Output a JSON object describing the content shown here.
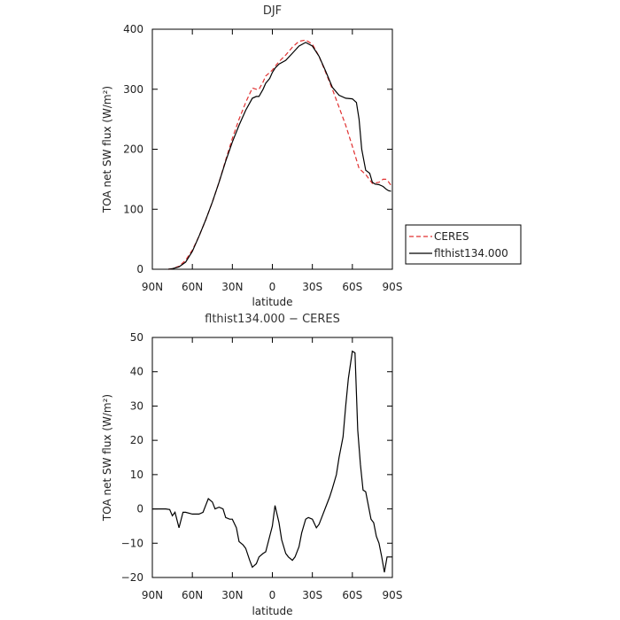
{
  "chart_data": [
    {
      "type": "line",
      "title": "DJF",
      "xlabel": "latitude",
      "ylabel": "TOA net SW flux (W/m²)",
      "xlim": [
        90,
        -90
      ],
      "ylim": [
        0,
        400
      ],
      "x_ticks": [
        90,
        60,
        30,
        0,
        -30,
        -60,
        -90
      ],
      "x_tick_labels": [
        "90N",
        "60N",
        "30N",
        "0",
        "30S",
        "60S",
        "90S"
      ],
      "y_ticks": [
        0,
        100,
        200,
        300,
        400
      ],
      "y_tick_labels": [
        "0",
        "100",
        "200",
        "300",
        "400"
      ],
      "legend": "right",
      "series": [
        {
          "name": "CERES",
          "color": "#e03030",
          "dash": "dashed",
          "x": [
            78,
            75,
            70,
            65,
            60,
            55,
            50,
            45,
            40,
            35,
            30,
            25,
            20,
            15,
            12,
            10,
            7,
            5,
            2,
            0,
            -2,
            -5,
            -10,
            -15,
            -20,
            -25,
            -30,
            -35,
            -40,
            -45,
            -50,
            -55,
            -60,
            -65,
            -70,
            -75,
            -80,
            -83,
            -85,
            -87,
            -89
          ],
          "y": [
            0,
            1,
            5,
            15,
            32,
            55,
            82,
            112,
            145,
            182,
            218,
            250,
            278,
            302,
            300,
            300,
            312,
            322,
            328,
            332,
            338,
            346,
            357,
            370,
            380,
            382,
            375,
            355,
            328,
            300,
            270,
            240,
            205,
            168,
            158,
            143,
            145,
            150,
            150,
            146,
            140
          ]
        },
        {
          "name": "flthist134.000",
          "color": "#000000",
          "dash": "solid",
          "x": [
            78,
            75,
            70,
            65,
            60,
            55,
            50,
            45,
            40,
            35,
            30,
            25,
            20,
            15,
            12,
            10,
            7,
            5,
            2,
            0,
            -2,
            -5,
            -10,
            -15,
            -20,
            -25,
            -30,
            -35,
            -40,
            -45,
            -50,
            -55,
            -60,
            -63,
            -65,
            -67,
            -70,
            -73,
            -75,
            -77,
            -80,
            -83,
            -85,
            -87,
            -89
          ],
          "y": [
            0,
            1,
            4,
            12,
            30,
            55,
            82,
            112,
            145,
            180,
            212,
            240,
            265,
            285,
            288,
            288,
            300,
            310,
            318,
            328,
            335,
            342,
            348,
            360,
            372,
            378,
            372,
            355,
            330,
            303,
            290,
            285,
            284,
            278,
            250,
            200,
            165,
            160,
            145,
            142,
            141,
            138,
            134,
            131,
            130
          ]
        }
      ]
    },
    {
      "type": "line",
      "title": "flthist134.000 − CERES",
      "xlabel": "latitude",
      "ylabel": "TOA net SW flux (W/m²)",
      "xlim": [
        90,
        -90
      ],
      "ylim": [
        -20,
        50
      ],
      "x_ticks": [
        90,
        60,
        30,
        0,
        -30,
        -60,
        -90
      ],
      "x_tick_labels": [
        "90N",
        "60N",
        "30N",
        "0",
        "30S",
        "60S",
        "90S"
      ],
      "y_ticks": [
        -20,
        -10,
        0,
        10,
        20,
        30,
        40,
        50
      ],
      "y_tick_labels": [
        "−20",
        "−10",
        "0",
        "10",
        "20",
        "30",
        "40",
        "50"
      ],
      "series": [
        {
          "color": "#000000",
          "dash": "solid",
          "x": [
            90,
            85,
            80,
            77,
            75,
            73,
            70,
            67,
            65,
            60,
            55,
            52,
            50,
            48,
            45,
            43,
            40,
            37,
            35,
            32,
            30,
            27,
            25,
            22,
            20,
            17,
            15,
            12,
            10,
            7,
            5,
            2,
            0,
            -2,
            -5,
            -7,
            -10,
            -12,
            -15,
            -17,
            -20,
            -22,
            -25,
            -27,
            -30,
            -33,
            -35,
            -37,
            -40,
            -43,
            -45,
            -48,
            -50,
            -53,
            -55,
            -57,
            -60,
            -62,
            -64,
            -66,
            -68,
            -70,
            -72,
            -74,
            -76,
            -78,
            -80,
            -82,
            -84,
            -86,
            -88,
            -90
          ],
          "y": [
            0,
            0,
            0,
            -0.2,
            -2,
            -1,
            -5.5,
            -1,
            -1,
            -1.5,
            -1.5,
            -1,
            1,
            3,
            2,
            0,
            0.5,
            0,
            -2.5,
            -3,
            -3,
            -5.5,
            -9.5,
            -10.5,
            -11.5,
            -15,
            -17,
            -16,
            -14,
            -13,
            -12.5,
            -8,
            -5,
            1,
            -4,
            -9,
            -13,
            -14,
            -15,
            -14,
            -11,
            -7,
            -3,
            -2.5,
            -3,
            -5.5,
            -4.5,
            -2.5,
            0.5,
            3.5,
            6,
            10,
            15,
            21,
            30,
            38,
            46,
            45.5,
            23,
            13,
            5.5,
            5,
            1,
            -3,
            -4,
            -8,
            -10,
            -14,
            -18.5,
            -14,
            -14,
            -14
          ]
        }
      ]
    }
  ]
}
